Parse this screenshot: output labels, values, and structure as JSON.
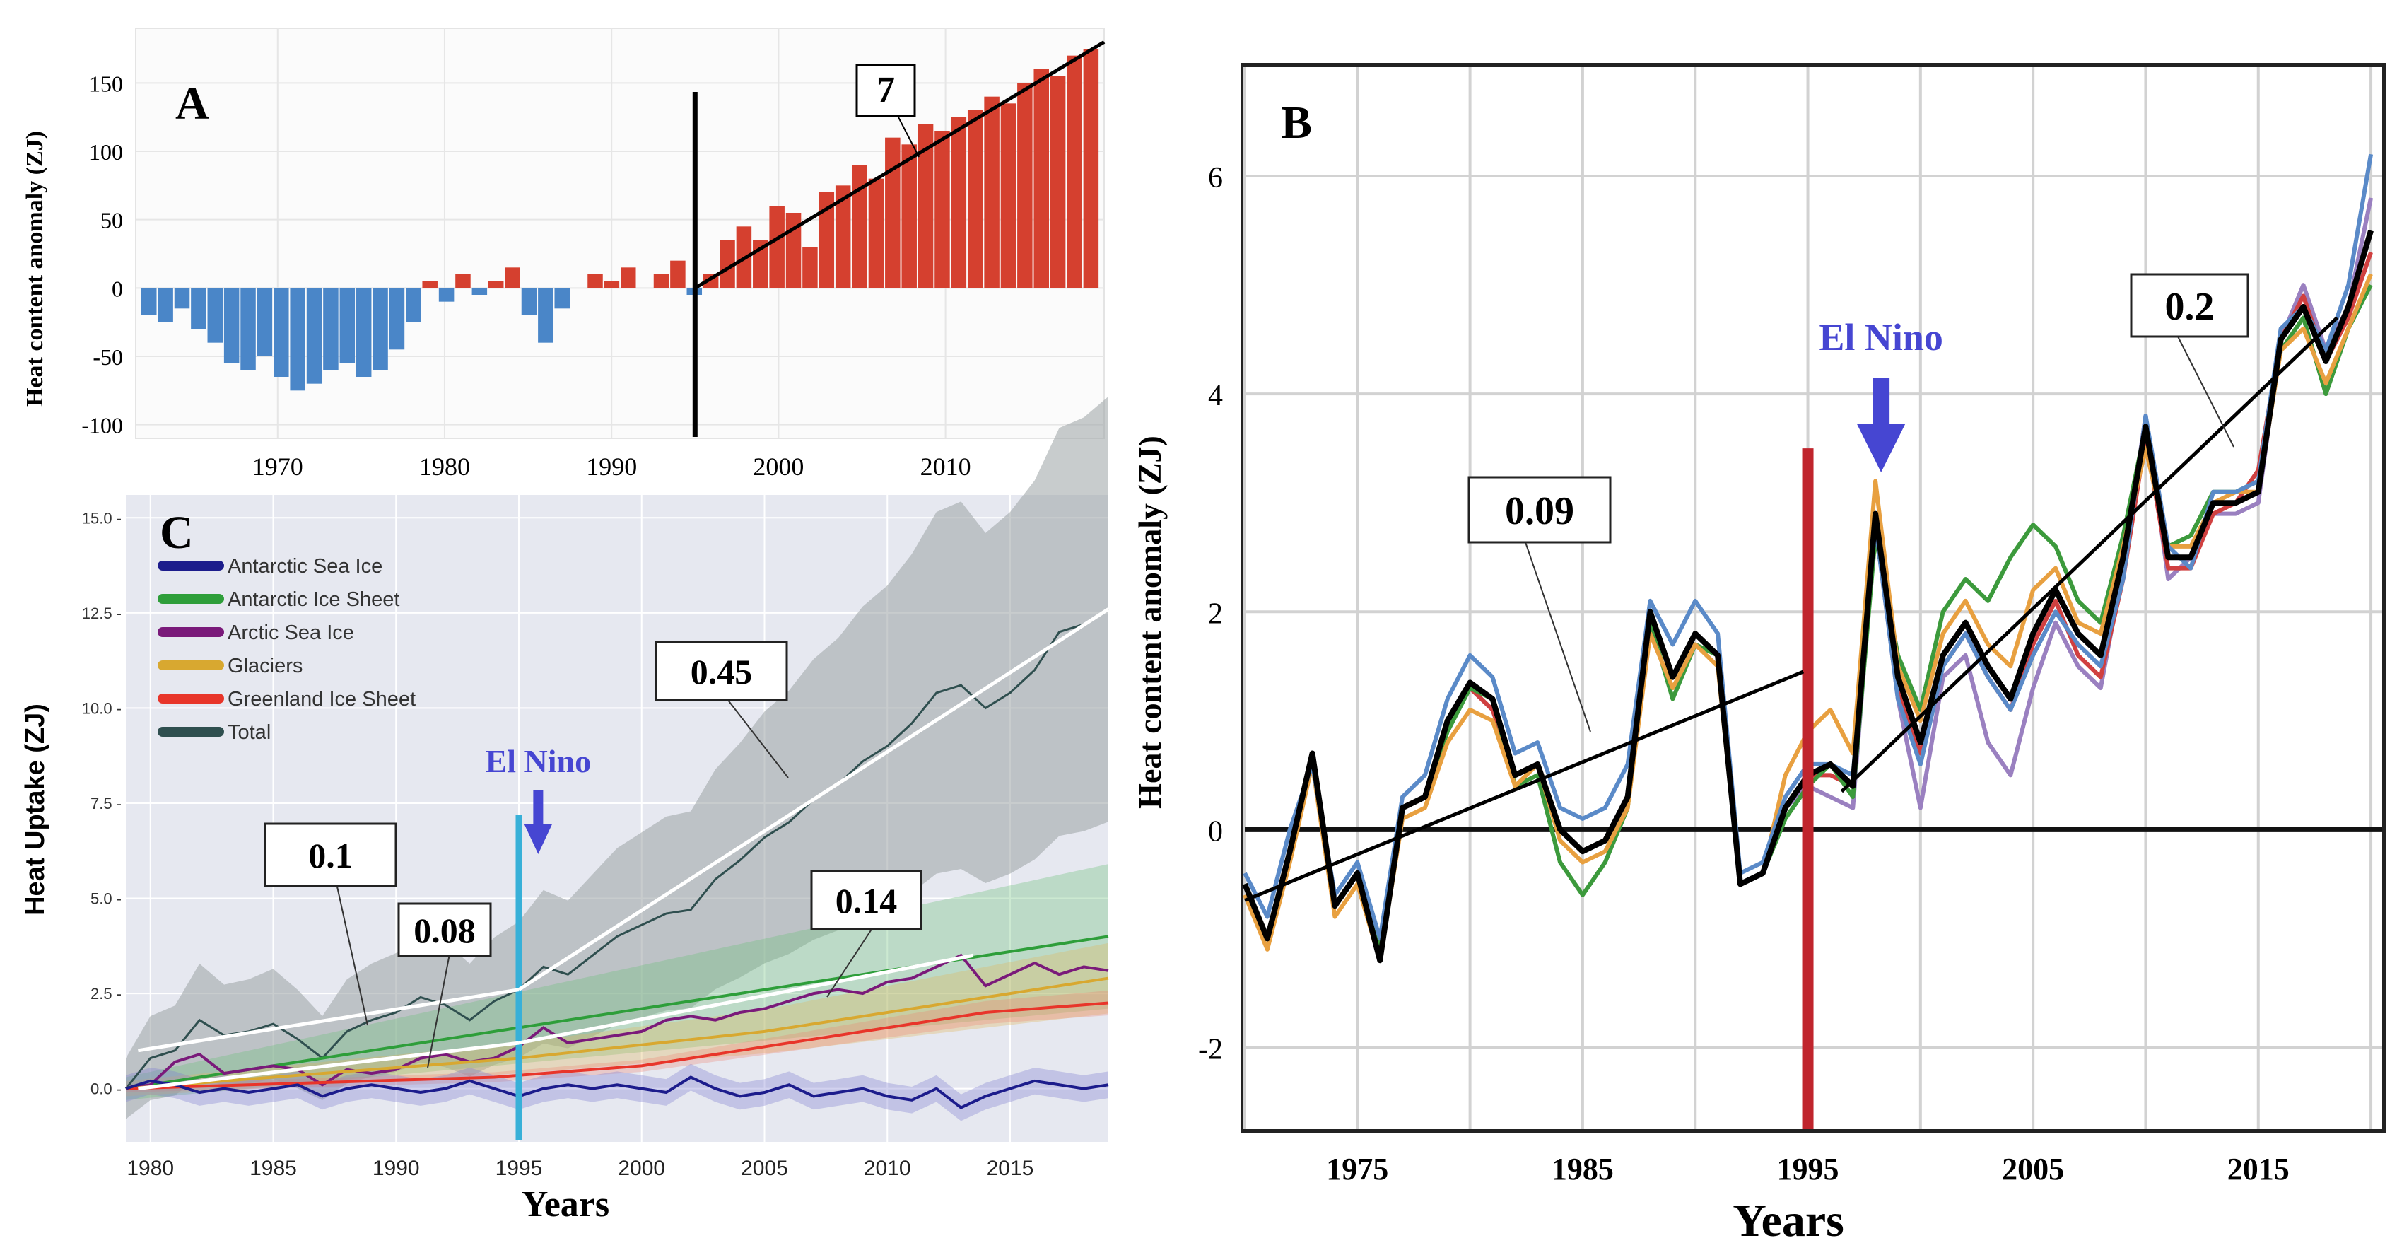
{
  "colors": {
    "neg_bar": "#4a86c8",
    "pos_bar": "#d5402f",
    "trend": "#111111",
    "el_nino": "#4646d2",
    "divider_c": "#38b0d8",
    "divider_b": "#c0252d",
    "antarctic_sea_ice": "#1c1c8c",
    "antarctic_ice_sheet": "#2e9e3a",
    "arctic_sea_ice": "#7a1a7a",
    "glaciers": "#d8a830",
    "greenland_ice_sheet": "#e8352a",
    "total": "#2f4f4f"
  },
  "chart_data": [
    {
      "id": "A",
      "panel_label": "A",
      "type": "bar",
      "ylabel": "Heat content anomaly (ZJ)",
      "xlabel": "",
      "xlim": [
        1961.5,
        2019.5
      ],
      "ylim": [
        -110,
        190
      ],
      "x_ticks": [
        "1970",
        "1980",
        "1990",
        "2000",
        "2010"
      ],
      "x_tick_values": [
        1970,
        1980,
        1990,
        2000,
        2010
      ],
      "y_ticks": [
        "150",
        "100",
        "50",
        "0",
        "-50",
        "-100"
      ],
      "y_tick_values": [
        150,
        100,
        50,
        0,
        -50,
        -100
      ],
      "divider_year": 1995,
      "trend": {
        "label": "7",
        "x0": 1995,
        "y0": 0,
        "x1": 2019.5,
        "y1": 180
      },
      "values": [
        -20,
        -25,
        -15,
        -30,
        -40,
        -55,
        -60,
        -50,
        -65,
        -75,
        -70,
        -60,
        -55,
        -65,
        -60,
        -45,
        -25,
        5,
        -10,
        10,
        -5,
        5,
        15,
        -20,
        -40,
        -15,
        0,
        10,
        5,
        15,
        0,
        10,
        20,
        -5,
        10,
        35,
        45,
        35,
        60,
        55,
        30,
        70,
        75,
        90,
        80,
        110,
        105,
        120,
        115,
        125,
        130,
        140,
        135,
        150,
        160,
        155,
        170,
        175
      ]
    },
    {
      "id": "B",
      "panel_label": "B",
      "type": "line",
      "xlabel": "Years",
      "ylabel": "Heat content anomaly (ZJ)",
      "xlim": [
        1970,
        2020.5
      ],
      "ylim": [
        -2.75,
        7
      ],
      "x_ticks": [
        "1975",
        "1985",
        "1995",
        "2005",
        "2015"
      ],
      "x_tick_values": [
        1975,
        1985,
        1995,
        2005,
        2015
      ],
      "y_ticks": [
        "6",
        "4",
        "2",
        "0",
        "-2"
      ],
      "y_tick_values": [
        6,
        4,
        2,
        0,
        -2
      ],
      "divider_year": 1995,
      "divider_ymax": 3.5,
      "el_nino": {
        "label": "El Nino",
        "year": 1998
      },
      "trends": [
        {
          "label": "0.09",
          "x0": 1970,
          "y0": -0.65,
          "x1": 1994.8,
          "y1": 1.45
        },
        {
          "label": "0.2",
          "x0": 1996.5,
          "y0": 0.35,
          "x1": 2018.5,
          "y1": 4.7
        }
      ],
      "x": [
        1970,
        1971,
        1972,
        1973,
        1974,
        1975,
        1976,
        1977,
        1978,
        1979,
        1980,
        1981,
        1982,
        1983,
        1984,
        1985,
        1986,
        1987,
        1988,
        1989,
        1990,
        1991,
        1992,
        1993,
        1994,
        1995,
        1996,
        1997,
        1998,
        1999,
        2000,
        2001,
        2002,
        2003,
        2004,
        2005,
        2006,
        2007,
        2008,
        2009,
        2010,
        2011,
        2012,
        2013,
        2014,
        2015,
        2016,
        2017,
        2018,
        2019,
        2020
      ],
      "series": [
        {
          "name": "black",
          "color": "#000000",
          "values": [
            -0.5,
            -1.0,
            -0.2,
            0.7,
            -0.7,
            -0.4,
            -1.2,
            0.2,
            0.3,
            1.0,
            1.35,
            1.2,
            0.5,
            0.6,
            0.0,
            -0.2,
            -0.1,
            0.3,
            2.0,
            1.4,
            1.8,
            1.6,
            -0.5,
            -0.4,
            0.2,
            0.5,
            0.6,
            0.4,
            2.9,
            1.4,
            0.8,
            1.6,
            1.9,
            1.5,
            1.2,
            1.8,
            2.2,
            1.8,
            1.6,
            2.5,
            3.7,
            2.5,
            2.5,
            3.0,
            3.0,
            3.1,
            4.5,
            4.8,
            4.3,
            4.8,
            5.5
          ]
        },
        {
          "name": "blue",
          "color": "#5a8ac8",
          "values": [
            -0.4,
            -0.8,
            0.0,
            0.6,
            -0.6,
            -0.3,
            -1.0,
            0.3,
            0.5,
            1.2,
            1.6,
            1.4,
            0.7,
            0.8,
            0.2,
            0.1,
            0.2,
            0.6,
            2.1,
            1.7,
            2.1,
            1.8,
            -0.4,
            -0.3,
            0.3,
            0.6,
            0.6,
            0.5,
            2.8,
            1.2,
            0.6,
            1.5,
            1.8,
            1.4,
            1.1,
            1.6,
            2.0,
            1.7,
            1.5,
            2.3,
            3.8,
            2.6,
            2.4,
            3.1,
            3.1,
            3.2,
            4.6,
            4.8,
            4.4,
            5.0,
            6.2
          ]
        },
        {
          "name": "orange",
          "color": "#e8a040",
          "values": [
            -0.6,
            -1.1,
            -0.3,
            0.6,
            -0.8,
            -0.5,
            -1.2,
            0.1,
            0.2,
            0.8,
            1.1,
            1.0,
            0.4,
            0.6,
            -0.1,
            -0.3,
            -0.2,
            0.2,
            1.8,
            1.3,
            1.7,
            1.5,
            -0.5,
            -0.4,
            0.5,
            0.9,
            1.1,
            0.7,
            3.2,
            1.5,
            1.0,
            1.8,
            2.1,
            1.7,
            1.5,
            2.2,
            2.4,
            1.9,
            1.8,
            2.6,
            3.5,
            2.6,
            2.6,
            3.0,
            3.1,
            3.1,
            4.4,
            4.6,
            4.1,
            4.6,
            5.1
          ]
        },
        {
          "name": "green",
          "color": "#3c9a3c",
          "values": [
            -0.5,
            -1.0,
            -0.2,
            0.7,
            -0.7,
            -0.4,
            -1.1,
            0.2,
            0.3,
            0.9,
            1.3,
            1.2,
            0.4,
            0.5,
            -0.3,
            -0.6,
            -0.3,
            0.2,
            1.9,
            1.2,
            1.7,
            1.6,
            -0.5,
            -0.4,
            0.1,
            0.4,
            0.6,
            0.3,
            2.7,
            1.6,
            1.1,
            2.0,
            2.3,
            2.1,
            2.5,
            2.8,
            2.6,
            2.1,
            1.9,
            2.7,
            3.7,
            2.6,
            2.7,
            3.1,
            3.1,
            3.2,
            4.4,
            4.7,
            4.0,
            4.6,
            5.0
          ]
        },
        {
          "name": "red",
          "color": "#d04040",
          "values": [
            -0.5,
            -1.0,
            -0.2,
            0.7,
            -0.7,
            -0.4,
            -1.2,
            0.2,
            0.3,
            1.0,
            1.3,
            1.1,
            0.5,
            0.6,
            0.0,
            -0.2,
            -0.1,
            0.3,
            2.0,
            1.4,
            1.8,
            1.6,
            -0.5,
            -0.4,
            0.2,
            0.5,
            0.5,
            0.4,
            2.9,
            1.3,
            0.7,
            1.5,
            1.8,
            1.4,
            1.1,
            1.7,
            2.1,
            1.6,
            1.4,
            2.3,
            3.6,
            2.4,
            2.4,
            2.9,
            3.0,
            3.3,
            4.5,
            4.9,
            4.3,
            4.7,
            5.3
          ]
        },
        {
          "name": "purple",
          "color": "#9a80c0",
          "values": [
            -0.5,
            -1.0,
            -0.2,
            0.7,
            -0.7,
            -0.4,
            -1.2,
            0.2,
            0.3,
            1.0,
            1.3,
            1.1,
            0.5,
            0.6,
            0.0,
            -0.2,
            -0.1,
            0.3,
            2.0,
            1.4,
            1.8,
            1.6,
            -0.5,
            -0.4,
            0.2,
            0.4,
            0.3,
            0.2,
            2.8,
            1.2,
            0.2,
            1.4,
            1.6,
            0.8,
            0.5,
            1.3,
            1.9,
            1.5,
            1.3,
            2.4,
            3.8,
            2.3,
            2.5,
            2.9,
            2.9,
            3.0,
            4.5,
            5.0,
            4.4,
            4.8,
            5.8
          ]
        }
      ]
    },
    {
      "id": "C",
      "panel_label": "C",
      "type": "line",
      "xlabel": "Years",
      "ylabel": "Heat Uptake (ZJ)",
      "xlim": [
        1979,
        2019
      ],
      "ylim": [
        -1.4,
        15.6
      ],
      "x_ticks": [
        "1980",
        "1985",
        "1990",
        "1995",
        "2000",
        "2005",
        "2010",
        "2015"
      ],
      "x_tick_values": [
        1980,
        1985,
        1990,
        1995,
        2000,
        2005,
        2010,
        2015
      ],
      "y_ticks": [
        "15.0 -",
        "12.5 -",
        "10.0 -",
        "7.5 -",
        "5.0 -",
        "2.5 -",
        "0.0 -"
      ],
      "y_tick_values": [
        15,
        12.5,
        10,
        7.5,
        5,
        2.5,
        0
      ],
      "divider_year": 1995,
      "divider_ymax": 7.2,
      "el_nino": {
        "label": "El Nino",
        "year": 1995.5
      },
      "legend": [
        {
          "name": "Antarctic Sea Ice",
          "color": "#1c1c8c"
        },
        {
          "name": "Antarctic Ice Sheet",
          "color": "#2e9e3a"
        },
        {
          "name": "Arctic Sea Ice",
          "color": "#7a1a7a"
        },
        {
          "name": "Glaciers",
          "color": "#d8a830"
        },
        {
          "name": "Greenland Ice Sheet",
          "color": "#e8352a"
        },
        {
          "name": "Total",
          "color": "#2f4f4f"
        }
      ],
      "trends": [
        {
          "label": "0.1",
          "x0": 1979.5,
          "y0": 1.0,
          "x1": 1995,
          "y1": 2.6
        },
        {
          "label": "0.45",
          "x0": 1995,
          "y0": 2.6,
          "x1": 2019,
          "y1": 12.6
        },
        {
          "label": "0.08",
          "x0": 1979.5,
          "y0": 0.0,
          "x1": 1995,
          "y1": 1.2
        },
        {
          "label": "0.14",
          "x0": 1995,
          "y0": 1.2,
          "x1": 2013.5,
          "y1": 3.5
        }
      ],
      "x": [
        1979,
        1980,
        1981,
        1982,
        1983,
        1984,
        1985,
        1986,
        1987,
        1988,
        1989,
        1990,
        1991,
        1992,
        1993,
        1994,
        1995,
        1996,
        1997,
        1998,
        1999,
        2000,
        2001,
        2002,
        2003,
        2004,
        2005,
        2006,
        2007,
        2008,
        2009,
        2010,
        2011,
        2012,
        2013,
        2014,
        2015,
        2016,
        2017,
        2018,
        2019
      ],
      "series": [
        {
          "name": "Total",
          "values": [
            0.0,
            0.8,
            1.0,
            1.8,
            1.4,
            1.5,
            1.7,
            1.3,
            0.8,
            1.5,
            1.8,
            2.0,
            2.4,
            2.2,
            1.8,
            2.3,
            2.6,
            3.2,
            3.0,
            3.5,
            4.0,
            4.3,
            4.6,
            4.7,
            5.5,
            6.0,
            6.6,
            7.0,
            7.6,
            8.0,
            8.6,
            9.0,
            9.6,
            10.4,
            10.6,
            10.0,
            10.4,
            11.0,
            12.0,
            12.2,
            12.6
          ]
        },
        {
          "name": "Antarctic Ice Sheet",
          "values": [
            0.0,
            0.1,
            0.2,
            0.3,
            0.4,
            0.5,
            0.6,
            0.7,
            0.8,
            0.9,
            1.0,
            1.1,
            1.2,
            1.3,
            1.4,
            1.5,
            1.6,
            1.7,
            1.8,
            1.9,
            2.0,
            2.1,
            2.2,
            2.3,
            2.4,
            2.5,
            2.6,
            2.7,
            2.8,
            2.9,
            3.0,
            3.1,
            3.2,
            3.3,
            3.4,
            3.5,
            3.6,
            3.7,
            3.8,
            3.9,
            4.0
          ]
        },
        {
          "name": "Arctic Sea Ice",
          "values": [
            0.0,
            0.1,
            0.7,
            0.9,
            0.4,
            0.5,
            0.6,
            0.5,
            0.1,
            0.5,
            0.4,
            0.5,
            0.8,
            0.9,
            0.7,
            0.8,
            1.1,
            1.6,
            1.2,
            1.3,
            1.4,
            1.5,
            1.8,
            1.9,
            1.8,
            2.0,
            2.1,
            2.3,
            2.5,
            2.6,
            2.5,
            2.8,
            2.9,
            3.2,
            3.5,
            2.7,
            3.0,
            3.3,
            3.0,
            3.2,
            3.1
          ]
        },
        {
          "name": "Glaciers",
          "values": [
            0.0,
            0.05,
            0.1,
            0.15,
            0.2,
            0.25,
            0.3,
            0.35,
            0.4,
            0.45,
            0.5,
            0.55,
            0.6,
            0.65,
            0.7,
            0.75,
            0.8,
            0.87,
            0.94,
            1.01,
            1.08,
            1.15,
            1.22,
            1.29,
            1.36,
            1.43,
            1.5,
            1.6,
            1.7,
            1.8,
            1.9,
            2.0,
            2.1,
            2.2,
            2.3,
            2.4,
            2.5,
            2.6,
            2.7,
            2.8,
            2.9
          ]
        },
        {
          "name": "Greenland Ice Sheet",
          "values": [
            0.0,
            0.02,
            0.04,
            0.06,
            0.08,
            0.1,
            0.12,
            0.14,
            0.16,
            0.18,
            0.2,
            0.22,
            0.24,
            0.26,
            0.28,
            0.3,
            0.35,
            0.4,
            0.45,
            0.5,
            0.55,
            0.6,
            0.7,
            0.8,
            0.9,
            1.0,
            1.1,
            1.2,
            1.3,
            1.4,
            1.5,
            1.6,
            1.7,
            1.8,
            1.9,
            2.0,
            2.05,
            2.1,
            2.15,
            2.2,
            2.25
          ]
        },
        {
          "name": "Antarctic Sea Ice",
          "values": [
            0.0,
            0.2,
            0.1,
            -0.1,
            0.0,
            -0.1,
            0.0,
            0.1,
            -0.2,
            0.0,
            0.1,
            0.0,
            -0.1,
            0.0,
            0.2,
            0.0,
            -0.2,
            0.0,
            0.1,
            0.0,
            0.1,
            0.0,
            -0.1,
            0.3,
            0.0,
            -0.2,
            -0.1,
            0.1,
            -0.2,
            -0.1,
            0.0,
            -0.2,
            -0.3,
            0.0,
            -0.5,
            -0.2,
            0.0,
            0.2,
            0.1,
            0.0,
            0.1
          ]
        }
      ]
    }
  ]
}
